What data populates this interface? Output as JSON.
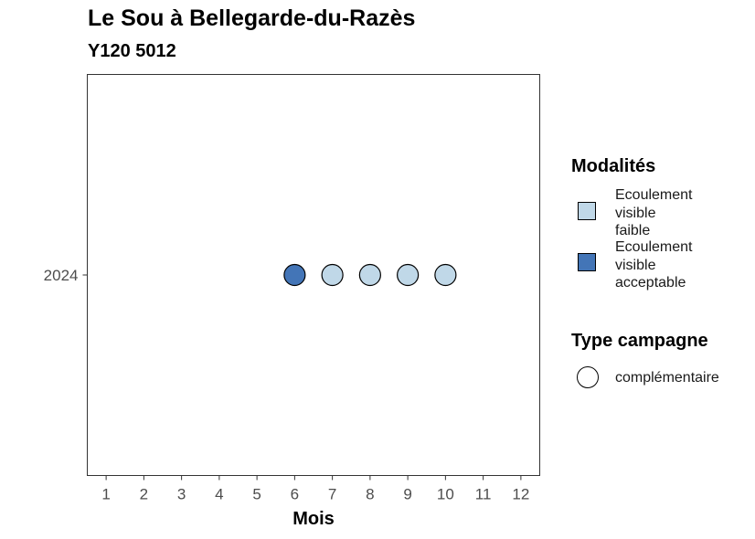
{
  "chart_data": {
    "type": "scatter",
    "title": "Le Sou à Bellegarde-du-Razès",
    "subtitle": "Y120 5012",
    "xlabel": "Mois",
    "ylabel": "",
    "x_ticks": [
      1,
      2,
      3,
      4,
      5,
      6,
      7,
      8,
      9,
      10,
      11,
      12
    ],
    "xlim": [
      0.5,
      12.5
    ],
    "y_categories": [
      "2024"
    ],
    "grid": false,
    "legend_position": "right",
    "points": [
      {
        "x": 6,
        "y": "2024",
        "modalite": "Ecoulement visible acceptable",
        "type_campagne": "complémentaire"
      },
      {
        "x": 7,
        "y": "2024",
        "modalite": "Ecoulement visible faible",
        "type_campagne": "complémentaire"
      },
      {
        "x": 8,
        "y": "2024",
        "modalite": "Ecoulement visible faible",
        "type_campagne": "complémentaire"
      },
      {
        "x": 9,
        "y": "2024",
        "modalite": "Ecoulement visible faible",
        "type_campagne": "complémentaire"
      },
      {
        "x": 10,
        "y": "2024",
        "modalite": "Ecoulement visible faible",
        "type_campagne": "complémentaire"
      }
    ],
    "legend": {
      "modalites_title": "Modalités",
      "modalites": [
        {
          "label_lines": [
            "Ecoulement",
            "visible",
            "faible"
          ],
          "color": "#c0d8e8"
        },
        {
          "label_lines": [
            "Ecoulement",
            "visible",
            "acceptable"
          ],
          "color": "#4375b7"
        }
      ],
      "type_title": "Type campagne",
      "types": [
        {
          "label": "complémentaire",
          "shape": "circle"
        }
      ]
    },
    "colors": {
      "Ecoulement visible faible": "#c0d8e8",
      "Ecoulement visible acceptable": "#4375b7"
    }
  }
}
